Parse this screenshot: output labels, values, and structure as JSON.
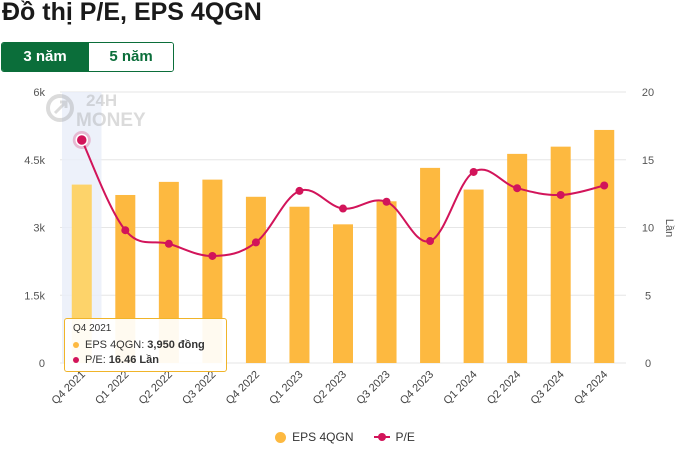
{
  "page": {
    "title": "Đồ thị P/E, EPS 4QGN"
  },
  "tabs": [
    {
      "label": "3 năm",
      "active": true
    },
    {
      "label": "5 năm",
      "active": false
    }
  ],
  "watermark": {
    "line1": "24H",
    "line2": "MONEY"
  },
  "tooltip": {
    "header": "Q4 2021",
    "eps_label": "EPS 4QGN:",
    "eps_value": "3,950 đồng",
    "pe_label": "P/E:",
    "pe_value": "16.46 Lần"
  },
  "legend": {
    "eps": "EPS 4QGN",
    "pe": "P/E"
  },
  "colors": {
    "bar": "#fdb940",
    "bar_active": "#fdd36a",
    "line": "#d2145a",
    "brand": "#0b6e3a"
  },
  "chart_data": {
    "type": "bar+line",
    "categories": [
      "Q4 2021",
      "Q1 2022",
      "Q2 2022",
      "Q3 2022",
      "Q4 2022",
      "Q1 2023",
      "Q2 2023",
      "Q3 2023",
      "Q4 2023",
      "Q1 2024",
      "Q2 2024",
      "Q3 2024",
      "Q4 2024"
    ],
    "series": [
      {
        "name": "EPS 4QGN",
        "type": "bar",
        "axis": "left",
        "values": [
          3950,
          3720,
          4010,
          4060,
          3680,
          3460,
          3070,
          3580,
          4320,
          3840,
          4630,
          4790,
          5160
        ]
      },
      {
        "name": "P/E",
        "type": "line",
        "axis": "right",
        "values": [
          16.46,
          9.8,
          8.8,
          7.9,
          8.9,
          12.7,
          11.4,
          11.9,
          9.0,
          14.1,
          12.9,
          12.4,
          13.1
        ]
      }
    ],
    "left_axis": {
      "ticks": [
        "0",
        "1.5k",
        "3k",
        "4.5k",
        "6k"
      ],
      "ylim": [
        0,
        6000
      ]
    },
    "right_axis": {
      "ticks": [
        "0",
        "5",
        "10",
        "15",
        "20"
      ],
      "ylim": [
        0,
        20
      ],
      "label": "Lần"
    },
    "highlight_index": 0,
    "grid": true,
    "legend_position": "bottom-center"
  }
}
